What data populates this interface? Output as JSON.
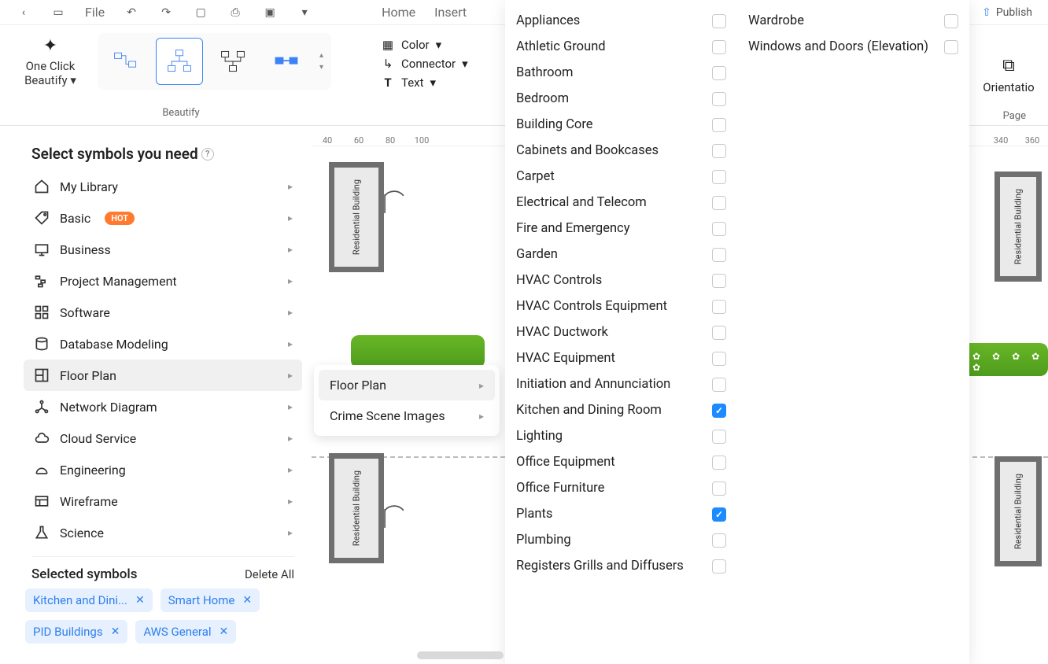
{
  "topbar": {
    "file_label": "File",
    "home_tab": "Home",
    "insert_tab": "Insert",
    "publish_label": "Publish"
  },
  "ribbon": {
    "one_click_line1": "One Click",
    "one_click_line2": "Beautify",
    "group_label": "Beautify",
    "color_label": "Color",
    "connector_label": "Connector",
    "text_label": "Text",
    "orientation_label": "Orientatio",
    "page_group_label": "Page"
  },
  "ruler": {
    "ticks": [
      "40",
      "60",
      "80",
      "100",
      "340",
      "360"
    ]
  },
  "symbol_panel": {
    "title": "Select symbols you need",
    "categories": [
      {
        "icon": "home",
        "label": "My Library"
      },
      {
        "icon": "tag",
        "label": "Basic",
        "hot": true
      },
      {
        "icon": "board",
        "label": "Business"
      },
      {
        "icon": "pm",
        "label": "Project Management"
      },
      {
        "icon": "soft",
        "label": "Software"
      },
      {
        "icon": "db",
        "label": "Database Modeling"
      },
      {
        "icon": "floor",
        "label": "Floor Plan",
        "hover": true
      },
      {
        "icon": "net",
        "label": "Network Diagram"
      },
      {
        "icon": "cloud",
        "label": "Cloud Service"
      },
      {
        "icon": "eng",
        "label": "Engineering"
      },
      {
        "icon": "wire",
        "label": "Wireframe"
      },
      {
        "icon": "sci",
        "label": "Science"
      }
    ],
    "selected_title": "Selected symbols",
    "delete_all": "Delete All",
    "chips": [
      "Kitchen and Dini...",
      "Smart Home",
      "PID Buildings",
      "AWS General"
    ]
  },
  "submenu": {
    "items": [
      {
        "label": "Floor Plan",
        "hover": true
      },
      {
        "label": "Crime Scene Images"
      }
    ]
  },
  "checklist": {
    "col1": [
      {
        "label": "Appliances",
        "checked": false
      },
      {
        "label": "Athletic Ground",
        "checked": false
      },
      {
        "label": "Bathroom",
        "checked": false
      },
      {
        "label": "Bedroom",
        "checked": false
      },
      {
        "label": "Building Core",
        "checked": false
      },
      {
        "label": "Cabinets and Bookcases",
        "checked": false
      },
      {
        "label": "Carpet",
        "checked": false
      },
      {
        "label": "Electrical and Telecom",
        "checked": false
      },
      {
        "label": "Fire and Emergency",
        "checked": false
      },
      {
        "label": "Garden",
        "checked": false
      },
      {
        "label": "HVAC Controls",
        "checked": false
      },
      {
        "label": "HVAC Controls Equipment",
        "checked": false
      },
      {
        "label": "HVAC Ductwork",
        "checked": false
      },
      {
        "label": "HVAC Equipment",
        "checked": false
      },
      {
        "label": "Initiation and Annunciation",
        "checked": false
      },
      {
        "label": "Kitchen and Dining Room",
        "checked": true
      },
      {
        "label": "Lighting",
        "checked": false
      },
      {
        "label": "Office Equipment",
        "checked": false
      },
      {
        "label": "Office Furniture",
        "checked": false
      },
      {
        "label": "Plants",
        "checked": true
      },
      {
        "label": "Plumbing",
        "checked": false
      },
      {
        "label": "Registers Grills and Diffusers",
        "checked": false
      }
    ],
    "col2": [
      {
        "label": "Wardrobe",
        "checked": false
      },
      {
        "label": "Windows and Doors (Elevation)",
        "checked": false
      }
    ]
  },
  "canvas": {
    "building_label": "Residential Building"
  },
  "colors": {
    "accent": "#1b8bff",
    "hot_badge": "#ff7a2f",
    "chip_bg": "#e6f0fe",
    "chip_fg": "#2e7ff0"
  }
}
